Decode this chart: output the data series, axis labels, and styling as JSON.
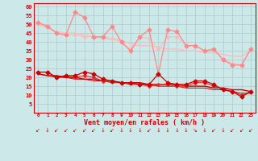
{
  "x": [
    0,
    1,
    2,
    3,
    4,
    5,
    6,
    7,
    8,
    9,
    10,
    11,
    12,
    13,
    14,
    15,
    16,
    17,
    18,
    19,
    20,
    21,
    22,
    23
  ],
  "rafales1": [
    51,
    49,
    45,
    44,
    57,
    54,
    43,
    43,
    49,
    40,
    35,
    43,
    47,
    22,
    47,
    46,
    38,
    38,
    35,
    36,
    30,
    27,
    27,
    36
  ],
  "rafales2": [
    50,
    48,
    46,
    45,
    45,
    44,
    43,
    42,
    42,
    41,
    39,
    38,
    38,
    37,
    36,
    36,
    35,
    35,
    34,
    34,
    33,
    32,
    32,
    35
  ],
  "rafales3": [
    50,
    49,
    45,
    44,
    44,
    43,
    43,
    43,
    42,
    40,
    36,
    43,
    42,
    36,
    43,
    43,
    38,
    38,
    35,
    36,
    30,
    28,
    27,
    36
  ],
  "moyen1": [
    23,
    23,
    20,
    21,
    21,
    23,
    22,
    19,
    18,
    17,
    17,
    16,
    16,
    22,
    17,
    16,
    16,
    18,
    18,
    16,
    13,
    12,
    9,
    12
  ],
  "moyen2": [
    22,
    21,
    21,
    20,
    20,
    19,
    19,
    18,
    18,
    17,
    17,
    17,
    16,
    16,
    16,
    16,
    15,
    15,
    15,
    14,
    14,
    13,
    13,
    12
  ],
  "moyen3": [
    23,
    23,
    20,
    21,
    20,
    21,
    20,
    18,
    18,
    17,
    17,
    16,
    15,
    16,
    16,
    15,
    15,
    17,
    17,
    15,
    13,
    12,
    10,
    12
  ],
  "moyen4": [
    22,
    21,
    20,
    20,
    19,
    19,
    18,
    18,
    17,
    17,
    16,
    16,
    16,
    15,
    15,
    15,
    14,
    14,
    14,
    13,
    13,
    12,
    11,
    11
  ],
  "bg_color": "#cce8e8",
  "grid_color": "#aacccc",
  "color_rafales_bright": "#ff8888",
  "color_rafales_light": "#ffbbbb",
  "color_moyen_dark": "#cc0000",
  "color_moyen_mid": "#dd3333",
  "xlabel": "Vent moyen/en rafales ( km/h )",
  "xlabel_color": "#cc0000",
  "tick_color": "#cc0000",
  "ylim": [
    0,
    62
  ],
  "yticks": [
    5,
    10,
    15,
    20,
    25,
    30,
    35,
    40,
    45,
    50,
    55,
    60
  ]
}
